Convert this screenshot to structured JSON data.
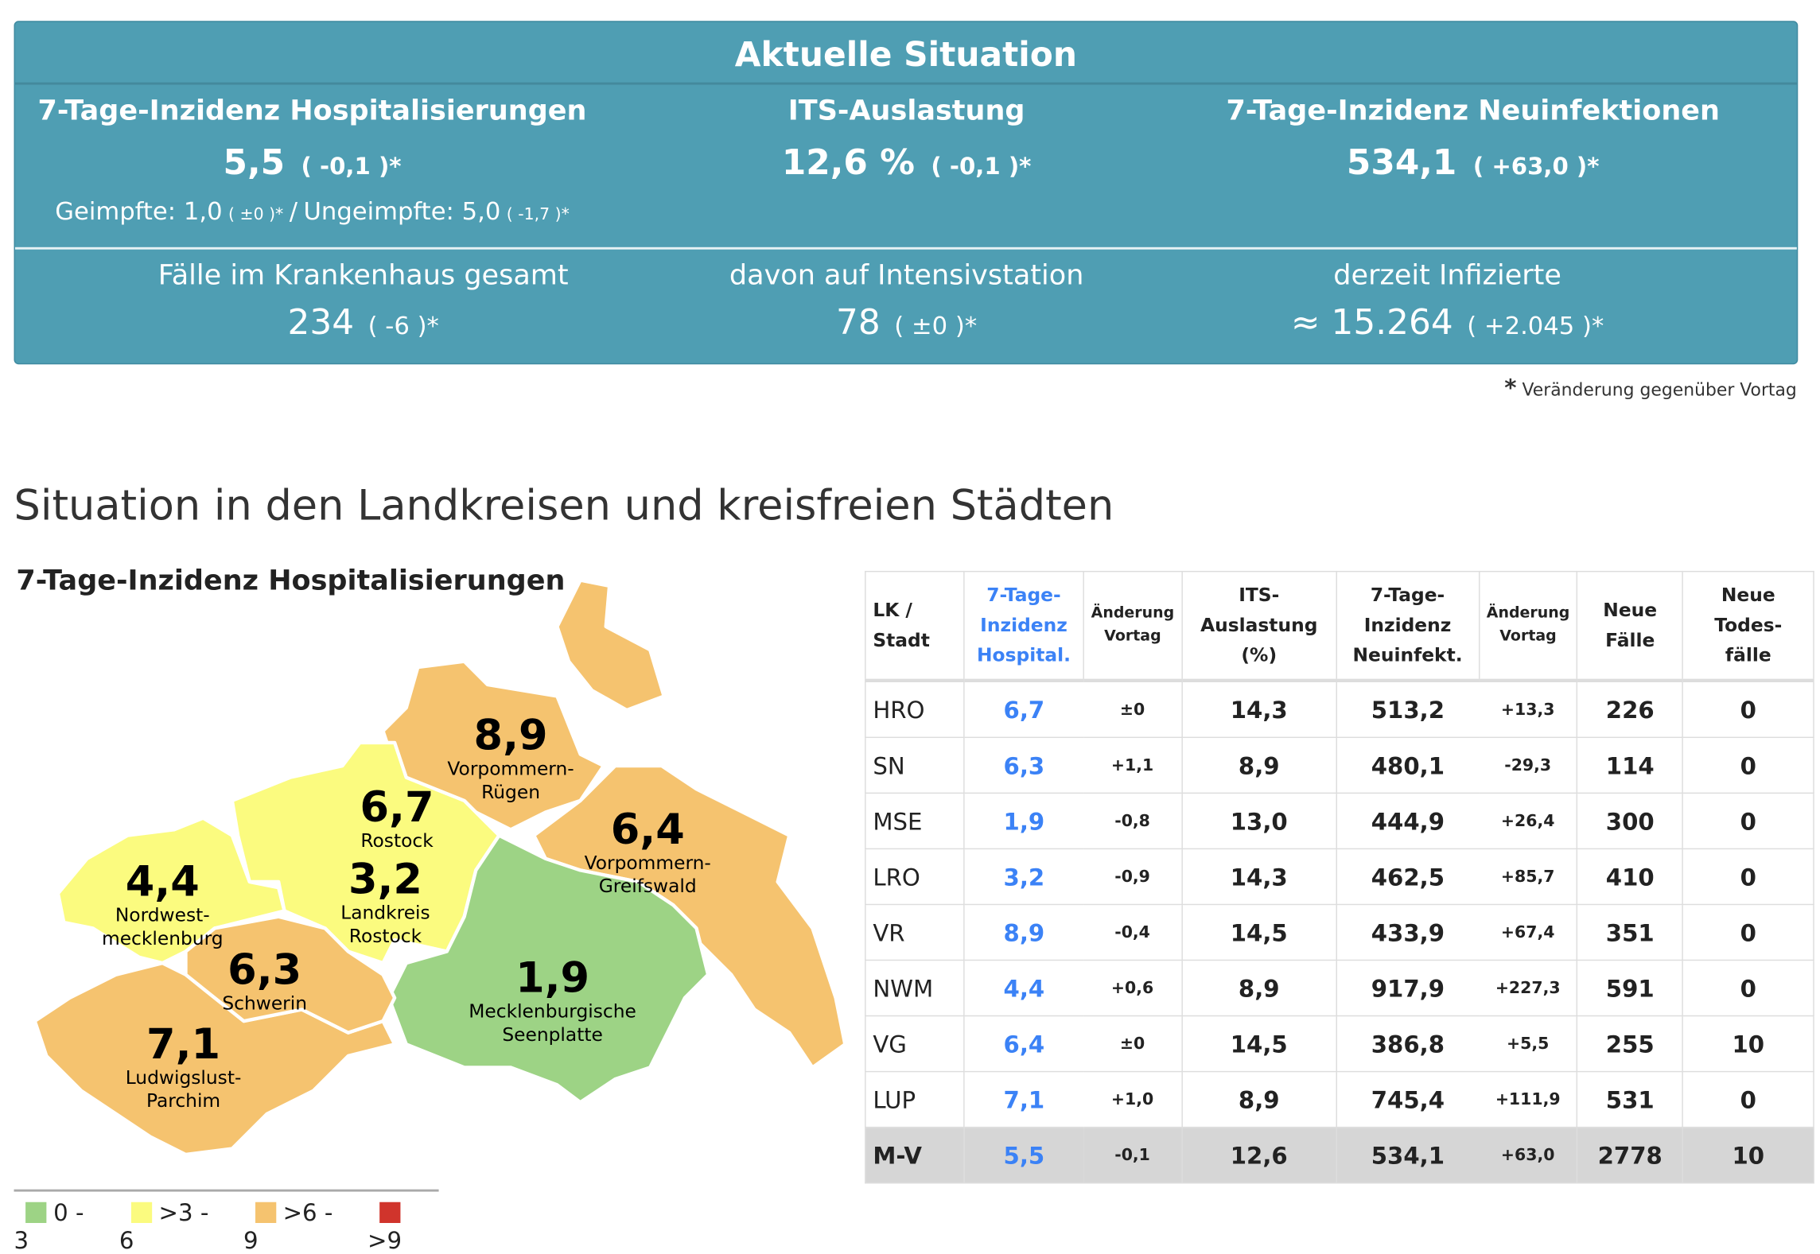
{
  "summary": {
    "title": "Aktuelle Situation",
    "hosp": {
      "label": "7-Tage-Inzidenz Hospitalisierungen",
      "value": "5,5",
      "change": "( -0,1 )*",
      "vacc_label": "Geimpfte: 1,0",
      "vacc_change": "( ±0 )*",
      "sep": "/",
      "unvacc_label": "Ungeimpfte: 5,0",
      "unvacc_change": "( -1,7 )*"
    },
    "its": {
      "label": "ITS-Auslastung",
      "value": "12,6 %",
      "change": "( -0,1 )*"
    },
    "inf": {
      "label": "7-Tage-Inzidenz Neuinfektionen",
      "value": "534,1",
      "change": "( +63,0 )*"
    },
    "hospital_total": {
      "label": "Fälle im Krankenhaus gesamt",
      "value": "234",
      "change": "( -6 )*"
    },
    "icu": {
      "label": "davon auf Intensivstation",
      "value": "78",
      "change": "( ±0 )*"
    },
    "infected": {
      "label": "derzeit Infizierte",
      "value": "≈ 15.264",
      "change": "( +2.045 )*"
    },
    "footnote_star": "*",
    "footnote": "Veränderung gegenüber Vortag"
  },
  "section_title": "Situation in den Landkreisen und kreisfreien Städten",
  "map": {
    "title": "7-Tage-Inzidenz Hospitalisierungen",
    "regions": [
      {
        "value": "8,9",
        "name1": "Vorpommern-",
        "name2": "Rügen",
        "category": ">6 - 9"
      },
      {
        "value": "6,7",
        "name1": "Rostock",
        "name2": "",
        "category": ">6 - 9"
      },
      {
        "value": "3,2",
        "name1": "Landkreis",
        "name2": "Rostock",
        "category": ">3 - 6"
      },
      {
        "value": "6,4",
        "name1": "Vorpommern-",
        "name2": "Greifswald",
        "category": ">6 - 9"
      },
      {
        "value": "4,4",
        "name1": "Nordwest-",
        "name2": "mecklenburg",
        "category": ">3 - 6"
      },
      {
        "value": "6,3",
        "name1": "Schwerin",
        "name2": "",
        "category": ">6 - 9"
      },
      {
        "value": "1,9",
        "name1": "Mecklenburgische",
        "name2": "Seenplatte",
        "category": "0 - 3"
      },
      {
        "value": "7,1",
        "name1": "Ludwigslust-",
        "name2": "Parchim",
        "category": ">6 - 9"
      }
    ],
    "legend": [
      {
        "label": "0 - 3",
        "color": "#9dd385"
      },
      {
        "label": ">3 - 6",
        "color": "#fbfb7f"
      },
      {
        "label": ">6 - 9",
        "color": "#f5c36f"
      },
      {
        "label": ">9",
        "color": "#d0342c"
      }
    ]
  },
  "table": {
    "headers": {
      "lk": "LK / Stadt",
      "hosp": "7-Tage- Inzidenz Hospital.",
      "chg1": "Änderung Vortag",
      "its": "ITS- Auslastung (%)",
      "inf": "7-Tage- Inzidenz Neuinfekt.",
      "chg2": "Änderung Vortag",
      "cases": "Neue Fälle",
      "deaths": "Neue Todes- fälle"
    },
    "rows": [
      [
        "HRO",
        "6,7",
        "±0",
        "14,3",
        "513,2",
        "+13,3",
        "226",
        "0"
      ],
      [
        "SN",
        "6,3",
        "+1,1",
        "8,9",
        "480,1",
        "-29,3",
        "114",
        "0"
      ],
      [
        "MSE",
        "1,9",
        "-0,8",
        "13,0",
        "444,9",
        "+26,4",
        "300",
        "0"
      ],
      [
        "LRO",
        "3,2",
        "-0,9",
        "14,3",
        "462,5",
        "+85,7",
        "410",
        "0"
      ],
      [
        "VR",
        "8,9",
        "-0,4",
        "14,5",
        "433,9",
        "+67,4",
        "351",
        "0"
      ],
      [
        "NWM",
        "4,4",
        "+0,6",
        "8,9",
        "917,9",
        "+227,3",
        "591",
        "0"
      ],
      [
        "VG",
        "6,4",
        "±0",
        "14,5",
        "386,8",
        "+5,5",
        "255",
        "10"
      ],
      [
        "LUP",
        "7,1",
        "+1,0",
        "8,9",
        "745,4",
        "+111,9",
        "531",
        "0"
      ]
    ],
    "total": [
      "M-V",
      "5,5",
      "-0,1",
      "12,6",
      "534,1",
      "+63,0",
      "2778",
      "10"
    ]
  }
}
